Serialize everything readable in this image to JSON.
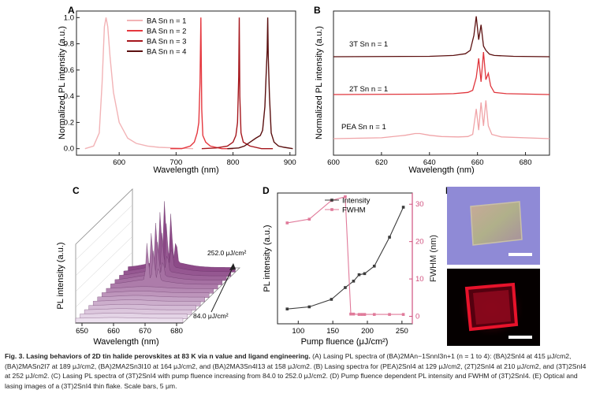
{
  "figure": {
    "panel_labels": {
      "A": "A",
      "B": "B",
      "C": "C",
      "D": "D",
      "E": "E"
    },
    "caption": {
      "title": "Fig. 3. Lasing behaviors of 2D tin halide perovskites at 83 K via n value and ligand engineering.",
      "body": "(A) Lasing PL spectra of (BA)2MAn−1SnnI3n+1 (n = 1 to 4): (BA)2SnI4 at 415 μJ/cm2, (BA)2MASn2I7 at 189 μJ/cm2, (BA)2MA2Sn3I10 at 164 μJ/cm2, and (BA)2MA3Sn4I13 at 158 μJ/cm2. (B) Lasing spectra for (PEA)2SnI4 at 129 μJ/cm2, (2T)2SnI4 at 210 μJ/cm2, and (3T)2SnI4 at 252 μJ/cm2. (C) Lasing PL spectra of (3T)2SnI4 with pump fluence increasing from 84.0 to 252.0 μJ/cm2. (D) Pump fluence dependent PL intensity and FWHM of (3T)2SnI4. (E) Optical and lasing images of a (3T)2SnI4 thin flake. Scale bars, 5 μm."
    }
  },
  "colors": {
    "n1": "#f2b3b6",
    "n2": "#e5383f",
    "n3": "#a5161c",
    "n4": "#5a0f0f",
    "pea": "#f0a4a8",
    "t2": "#e0353c",
    "t3": "#5c1010",
    "intensity": "#3b3b3b",
    "fwhm": "#e07a9a",
    "fwhm_axis": "#d0507e",
    "waterfall_top": "#8d4a88",
    "waterfall_bottom": "#ece0ee",
    "optical_bg": "#8f8ad6",
    "lasing_bg": "#050000",
    "lasing_spot": "#ff1530"
  },
  "chart_data": [
    {
      "panel": "A",
      "type": "line",
      "xlabel": "Wavelength (nm)",
      "ylabel": "Normalized PL intensity (a.u.)",
      "xlim": [
        525,
        910
      ],
      "ylim": [
        -0.05,
        1.05
      ],
      "xticks": [
        600,
        700,
        800,
        900
      ],
      "yticks": [
        0.0,
        0.2,
        0.4,
        0.6,
        0.8,
        1.0
      ],
      "legend_position": "top-right",
      "series": [
        {
          "name": "BA Sn n = 1",
          "color_key": "n1",
          "x": [
            540,
            555,
            565,
            570,
            574,
            577,
            580,
            584,
            590,
            600,
            615,
            630,
            650,
            670,
            700,
            730
          ],
          "y": [
            0.0,
            0.02,
            0.12,
            0.5,
            0.93,
            1.0,
            0.93,
            0.7,
            0.43,
            0.2,
            0.08,
            0.04,
            0.02,
            0.01,
            0.005,
            0.0
          ]
        },
        {
          "name": "BA Sn n = 2",
          "color_key": "n2",
          "x": [
            690,
            710,
            725,
            732,
            737,
            740,
            742,
            743.5,
            745,
            747,
            752,
            760,
            780,
            800
          ],
          "y": [
            0.0,
            0.0,
            0.02,
            0.05,
            0.12,
            0.2,
            0.5,
            1.0,
            0.3,
            0.1,
            0.05,
            0.02,
            0.0,
            0.0
          ]
        },
        {
          "name": "BA Sn n = 3",
          "color_key": "n3",
          "x": [
            745,
            770,
            790,
            800,
            805,
            808,
            810,
            811,
            812,
            814,
            818,
            830,
            850,
            870
          ],
          "y": [
            0.0,
            0.005,
            0.02,
            0.05,
            0.1,
            0.2,
            0.55,
            1.0,
            0.4,
            0.12,
            0.05,
            0.02,
            0.0,
            0.0
          ]
        },
        {
          "name": "BA Sn n = 4",
          "color_key": "n4",
          "x": [
            790,
            810,
            820,
            830,
            840,
            848,
            852,
            856,
            858,
            860,
            861,
            862,
            864,
            867,
            872,
            880,
            890,
            905
          ],
          "y": [
            0.0,
            0.005,
            0.02,
            0.05,
            0.08,
            0.1,
            0.14,
            0.32,
            0.55,
            0.75,
            1.0,
            0.7,
            0.4,
            0.12,
            0.05,
            0.02,
            0.01,
            0.0
          ]
        }
      ]
    },
    {
      "panel": "B",
      "type": "line",
      "xlabel": "Wavelength (nm)",
      "ylabel": "Normalized PL intensity (a.u.)",
      "xlim": [
        600,
        690
      ],
      "xticks": [
        600,
        620,
        640,
        660,
        680
      ],
      "series": [
        {
          "name": "3T Sn n = 1",
          "color_key": "t3",
          "offset": 2.0,
          "x": [
            600,
            640,
            650,
            655,
            657,
            658.5,
            659.5,
            660.5,
            661.5,
            662.5,
            663.5,
            665,
            667,
            675,
            690
          ],
          "y": [
            0.0,
            0.01,
            0.03,
            0.07,
            0.15,
            0.5,
            0.95,
            0.4,
            0.75,
            0.25,
            0.15,
            0.06,
            0.03,
            0.01,
            0.0
          ]
        },
        {
          "name": "2T Sn n = 1",
          "color_key": "t2",
          "offset": 1.0,
          "x": [
            600,
            640,
            650,
            656,
            658,
            659.5,
            660.5,
            661.5,
            662.5,
            663.5,
            664.5,
            665.5,
            667,
            672,
            690
          ],
          "y": [
            0.0,
            0.01,
            0.02,
            0.05,
            0.1,
            0.4,
            0.85,
            0.3,
            1.0,
            0.35,
            0.5,
            0.2,
            0.05,
            0.02,
            0.0
          ]
        },
        {
          "name": "PEA Sn n = 1",
          "color_key": "pea",
          "offset": 0.0,
          "x": [
            600,
            620,
            630,
            634,
            636,
            640,
            645,
            652,
            656,
            658,
            659.5,
            660.5,
            661.5,
            662.5,
            663.5,
            664.5,
            666,
            670,
            690
          ],
          "y": [
            0.0,
            0.02,
            0.08,
            0.12,
            0.12,
            0.08,
            0.05,
            0.04,
            0.05,
            0.1,
            0.7,
            0.2,
            0.85,
            0.3,
            0.9,
            0.3,
            0.1,
            0.04,
            0.0
          ]
        }
      ]
    },
    {
      "panel": "C",
      "type": "line",
      "xlabel": "Wavelength (nm)",
      "ylabel": "PL intensity (a.u.)",
      "xticks": [
        650,
        660,
        670,
        680
      ],
      "xlim": [
        648,
        682
      ],
      "fluence_range_label_low": "84.0  μJ/cm²",
      "fluence_range_label_high": "252.0 μJ/cm²",
      "n_traces": 13
    },
    {
      "panel": "D",
      "type": "line",
      "xlabel": "Pump fluence (μJ/cm²)",
      "ylabel": "PL intensity (a.u.)",
      "y2label": "FWHM (nm)",
      "xlim": [
        70,
        265
      ],
      "xticks": [
        100,
        150,
        200,
        250
      ],
      "y2lim": [
        -2,
        33
      ],
      "y2ticks": [
        0,
        10,
        20,
        30
      ],
      "legend_position": "top-center",
      "series": [
        {
          "name": "Intensity",
          "color_key": "intensity",
          "axis": "left",
          "x": [
            84,
            116,
            148,
            168,
            180,
            188,
            196,
            210,
            232,
            252
          ],
          "y": [
            0.05,
            0.07,
            0.14,
            0.25,
            0.31,
            0.37,
            0.38,
            0.45,
            0.72,
            1.0
          ]
        },
        {
          "name": "FWHM",
          "color_key": "fwhm",
          "axis": "right",
          "x": [
            84,
            116,
            148,
            168,
            176,
            180,
            188,
            192,
            196,
            210,
            232,
            252
          ],
          "y": [
            25,
            26,
            31,
            32,
            0.6,
            0.6,
            0.5,
            0.5,
            0.5,
            0.5,
            0.5,
            0.5
          ]
        }
      ]
    }
  ]
}
